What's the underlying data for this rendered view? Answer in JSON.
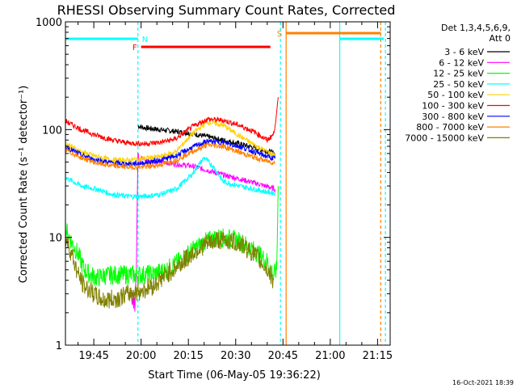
{
  "chart_data": {
    "type": "line",
    "title": "RHESSI Observing Summary Count Rates, Corrected",
    "xlabel": "Start Time (06-May-05 19:36:22)",
    "ylabel": "Corrected Count Rate (s⁻¹ detector⁻¹)",
    "y_scale": "log",
    "ylim": [
      1,
      1000
    ],
    "xlim_minutes_after_1936": [
      0,
      103
    ],
    "x_ticks": [
      {
        "label": "19:45",
        "minute": 9
      },
      {
        "label": "20:00",
        "minute": 24
      },
      {
        "label": "20:15",
        "minute": 39
      },
      {
        "label": "20:30",
        "minute": 54
      },
      {
        "label": "20:45",
        "minute": 69
      },
      {
        "label": "21:00",
        "minute": 84
      },
      {
        "label": "21:15",
        "minute": 99
      }
    ],
    "y_ticks": [
      {
        "label": "1",
        "value": 1
      },
      {
        "label": "10",
        "value": 10
      },
      {
        "label": "100",
        "value": 100
      },
      {
        "label": "1000",
        "value": 1000
      }
    ],
    "legend_header": [
      "Det 1,3,4,5,6,9,",
      "Att 0"
    ],
    "legend_placement": "right",
    "series": [
      {
        "name": "3 - 6 keV",
        "color": "#000000",
        "minutes": [
          23,
          25,
          30,
          35,
          40,
          45,
          50,
          55,
          60,
          65,
          66.5
        ],
        "values": [
          108,
          104,
          100,
          96,
          92,
          86,
          80,
          74,
          68,
          62,
          60
        ]
      },
      {
        "name": "6 - 12 keV",
        "color": "#ff00ff",
        "minutes": [
          21,
          22,
          22.5,
          23,
          23.5,
          24,
          25,
          30,
          35,
          40,
          45,
          50,
          55,
          60,
          65,
          66.5
        ],
        "values": [
          2.6,
          2.5,
          6,
          60,
          48,
          58,
          52,
          50,
          48,
          46,
          42,
          38,
          35,
          32,
          29,
          28
        ]
      },
      {
        "name": "12 - 25 keV",
        "color": "#00ff00",
        "minutes": [
          0,
          2,
          4,
          6,
          8,
          10,
          12,
          16,
          20,
          24,
          28,
          32,
          36,
          40,
          44,
          48,
          52,
          56,
          60,
          64,
          66,
          67,
          67.5
        ],
        "values": [
          12,
          9,
          7,
          5,
          4.5,
          4.2,
          4.4,
          4.5,
          4.5,
          4.5,
          4.6,
          5,
          6,
          7.5,
          9,
          10,
          9.8,
          9,
          7.5,
          6,
          4.5,
          5,
          30
        ]
      },
      {
        "name": "25 - 50 keV",
        "color": "#00ffff",
        "minutes": [
          0,
          5,
          10,
          15,
          20,
          25,
          30,
          35,
          40,
          44,
          47,
          50,
          55,
          60,
          65,
          66.5
        ],
        "values": [
          36,
          30,
          28,
          25,
          24,
          24,
          25,
          28,
          38,
          55,
          45,
          33,
          30,
          28,
          26,
          26
        ]
      },
      {
        "name": "50 - 100 keV",
        "color": "#ffd200",
        "minutes": [
          0,
          5,
          10,
          15,
          20,
          25,
          30,
          35,
          40,
          45,
          50,
          55,
          60,
          65,
          66.5
        ],
        "values": [
          75,
          62,
          56,
          52,
          52,
          54,
          56,
          62,
          90,
          118,
          110,
          88,
          72,
          60,
          58
        ]
      },
      {
        "name": "100 - 300 keV",
        "color": "#ff0000",
        "minutes": [
          0,
          5,
          10,
          15,
          20,
          25,
          30,
          35,
          40,
          45,
          50,
          55,
          60,
          64,
          66,
          67,
          67.5
        ],
        "values": [
          120,
          100,
          88,
          80,
          75,
          74,
          76,
          82,
          105,
          125,
          122,
          110,
          95,
          80,
          90,
          140,
          200
        ]
      },
      {
        "name": "300 - 800 keV",
        "color": "#0000ff",
        "minutes": [
          0,
          5,
          10,
          15,
          20,
          25,
          30,
          35,
          40,
          45,
          50,
          55,
          60,
          65,
          66.5
        ],
        "values": [
          70,
          58,
          52,
          49,
          48,
          49,
          52,
          57,
          68,
          78,
          76,
          70,
          62,
          55,
          54
        ]
      },
      {
        "name": "800 - 7000 keV",
        "color": "#ff8000",
        "minutes": [
          0,
          5,
          10,
          15,
          20,
          25,
          30,
          35,
          40,
          45,
          50,
          55,
          60,
          65,
          66.5
        ],
        "values": [
          65,
          55,
          49,
          46,
          45,
          45,
          47,
          52,
          62,
          72,
          70,
          62,
          55,
          50,
          49
        ]
      },
      {
        "name": "7000 - 15000 keV",
        "color": "#808000",
        "minutes": [
          0,
          2,
          4,
          6,
          8,
          10,
          12,
          16,
          20,
          24,
          28,
          32,
          36,
          40,
          44,
          48,
          52,
          56,
          60,
          64,
          66
        ],
        "values": [
          10,
          7,
          4.5,
          3.5,
          3.2,
          2.8,
          2.6,
          2.7,
          3,
          3.2,
          3.6,
          4.5,
          5.5,
          7,
          8.5,
          9.5,
          9.3,
          8.5,
          7,
          5,
          4
        ]
      }
    ],
    "flag_bars": [
      {
        "label": "N",
        "color": "#00ffff",
        "start_minute": 0,
        "end_minute": 23,
        "level": 0
      },
      {
        "label": "",
        "color": "#00ffff",
        "start_minute": 87,
        "end_minute": 101,
        "level": 0
      },
      {
        "label": "F",
        "color": "#ff0000",
        "start_minute": 24,
        "end_minute": 65,
        "level": 1
      },
      {
        "label": "S",
        "color": "#ff8000",
        "start_minute": 70,
        "end_minute": 100,
        "level": 2
      }
    ],
    "vertical_lines": [
      {
        "minute": 0,
        "color": "#00ffff",
        "style": "solid"
      },
      {
        "minute": 23,
        "color": "#00ffff",
        "style": "dashed"
      },
      {
        "minute": 68.2,
        "color": "#00ffff",
        "style": "dashed"
      },
      {
        "minute": 70,
        "color": "#ff8000",
        "style": "solid"
      },
      {
        "minute": 87,
        "color": "#00ffff",
        "style": "solid"
      },
      {
        "minute": 100,
        "color": "#ff8000",
        "style": "dashed"
      },
      {
        "minute": 101.5,
        "color": "#00ffff",
        "style": "dashed"
      }
    ]
  },
  "footer": {
    "timestamp": "16-Oct-2021 18:39"
  }
}
